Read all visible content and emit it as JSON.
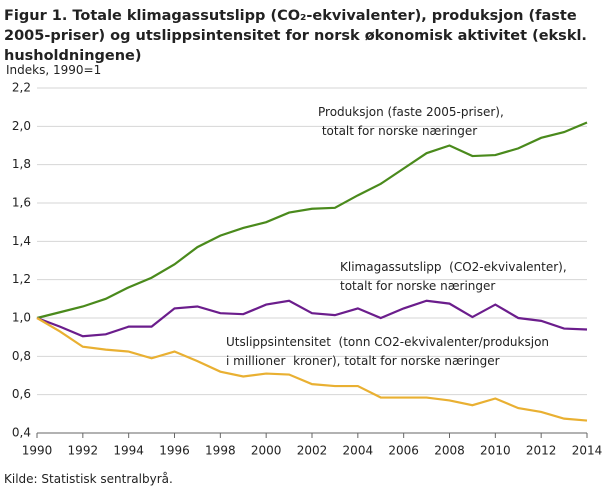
{
  "chart_data": {
    "type": "line",
    "title": "Figur 1. Totale klimagassutslipp (CO₂-ekvivalenter), produksjon (faste 2005-priser) og utslippsintensitet for norsk økonomisk aktivitet (ekskl. husholdningene)",
    "ylabel": "Indeks, 1990=1",
    "source": "Kilde: Statistisk sentralbyrå.",
    "x": [
      1990,
      1991,
      1992,
      1993,
      1994,
      1995,
      1996,
      1997,
      1998,
      1999,
      2000,
      2001,
      2002,
      2003,
      2004,
      2005,
      2006,
      2007,
      2008,
      2009,
      2010,
      2011,
      2012,
      2013,
      2014
    ],
    "series": [
      {
        "name": "Produksjon (faste 2005-priser),\n totalt for norske næringer",
        "color": "#4a8a1c",
        "values": [
          1.0,
          1.03,
          1.06,
          1.1,
          1.16,
          1.21,
          1.28,
          1.37,
          1.43,
          1.47,
          1.5,
          1.55,
          1.57,
          1.575,
          1.64,
          1.7,
          1.78,
          1.86,
          1.9,
          1.845,
          1.85,
          1.885,
          1.94,
          1.97,
          2.02
        ]
      },
      {
        "name": "Klimagassutslipp  (CO2-ekvivalenter),\ntotalt for norske næringer",
        "color": "#6b1d8c",
        "values": [
          1.0,
          0.955,
          0.905,
          0.915,
          0.955,
          0.955,
          1.05,
          1.06,
          1.025,
          1.02,
          1.07,
          1.09,
          1.025,
          1.015,
          1.05,
          1.0,
          1.05,
          1.09,
          1.075,
          1.005,
          1.07,
          1.0,
          0.985,
          0.945,
          0.94
        ]
      },
      {
        "name": "Utslippsintensitet  (tonn CO2-ekvivalenter/produksjon\ni millioner  kroner), totalt for norske næringer",
        "color": "#e9b032",
        "values": [
          1.0,
          0.93,
          0.85,
          0.835,
          0.825,
          0.79,
          0.825,
          0.775,
          0.72,
          0.695,
          0.71,
          0.705,
          0.655,
          0.645,
          0.645,
          0.585,
          0.585,
          0.585,
          0.57,
          0.545,
          0.58,
          0.53,
          0.51,
          0.475,
          0.465
        ]
      }
    ],
    "xlim": [
      1990,
      2014
    ],
    "xticks": [
      1990,
      1992,
      1994,
      1996,
      1998,
      2000,
      2002,
      2004,
      2006,
      2008,
      2010,
      2012,
      2014
    ],
    "ylim": [
      0.4,
      2.2
    ],
    "yticks": [
      {
        "value": 0.4,
        "label": "0,4"
      },
      {
        "value": 0.6,
        "label": "0,6"
      },
      {
        "value": 0.8,
        "label": "0,8"
      },
      {
        "value": 1.0,
        "label": "1,0"
      },
      {
        "value": 1.2,
        "label": "1,2"
      },
      {
        "value": 1.4,
        "label": "1,4"
      },
      {
        "value": 1.6,
        "label": "1,6"
      },
      {
        "value": 1.8,
        "label": "1,8"
      },
      {
        "value": 2.0,
        "label": "2,0"
      },
      {
        "value": 2.2,
        "label": "2,2"
      }
    ],
    "grid": true
  }
}
